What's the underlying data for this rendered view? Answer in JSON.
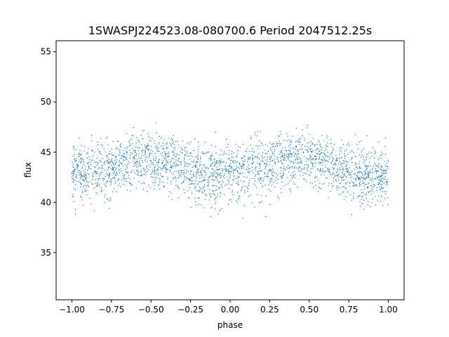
{
  "chart_data": {
    "type": "scatter",
    "title": "1SWASPJ224523.08-080700.6 Period 2047512.25s",
    "xlabel": "phase",
    "ylabel": "flux",
    "xlim": [
      -1.1,
      1.1
    ],
    "ylim": [
      30.3,
      56.1
    ],
    "xticks": [
      -1.0,
      -0.75,
      -0.5,
      -0.25,
      0.0,
      0.25,
      0.5,
      0.75,
      1.0
    ],
    "xtick_labels": [
      "−1.00",
      "−0.75",
      "−0.50",
      "−0.25",
      "0.00",
      "0.25",
      "0.50",
      "0.75",
      "1.00"
    ],
    "yticks": [
      35,
      40,
      45,
      50,
      55
    ],
    "ytick_labels": [
      "35",
      "40",
      "45",
      "50",
      "55"
    ],
    "grid": false,
    "legend": "none",
    "marker_color": "#1f77b4",
    "series": [
      {
        "x": [
          -1.0,
          -0.9,
          -0.8,
          -0.7,
          -0.6,
          -0.5,
          -0.4,
          -0.3,
          -0.2,
          -0.1,
          0.0,
          0.1,
          0.2,
          0.3,
          0.4,
          0.5,
          0.6,
          0.7,
          0.8,
          0.9,
          1.0
        ],
        "values": [
          43.0,
          43.2,
          43.4,
          43.8,
          44.2,
          44.5,
          44.0,
          43.5,
          42.8,
          42.6,
          43.0,
          43.2,
          43.4,
          43.8,
          44.2,
          44.5,
          44.0,
          43.5,
          42.8,
          42.6,
          43.0
        ],
        "spread": [
          2.5,
          2.8,
          2.8,
          2.5,
          2.3,
          2.2,
          2.3,
          2.4,
          2.6,
          2.7,
          2.5,
          2.8,
          2.8,
          2.5,
          2.3,
          2.2,
          2.3,
          2.4,
          2.6,
          2.7,
          2.5
        ]
      }
    ]
  }
}
